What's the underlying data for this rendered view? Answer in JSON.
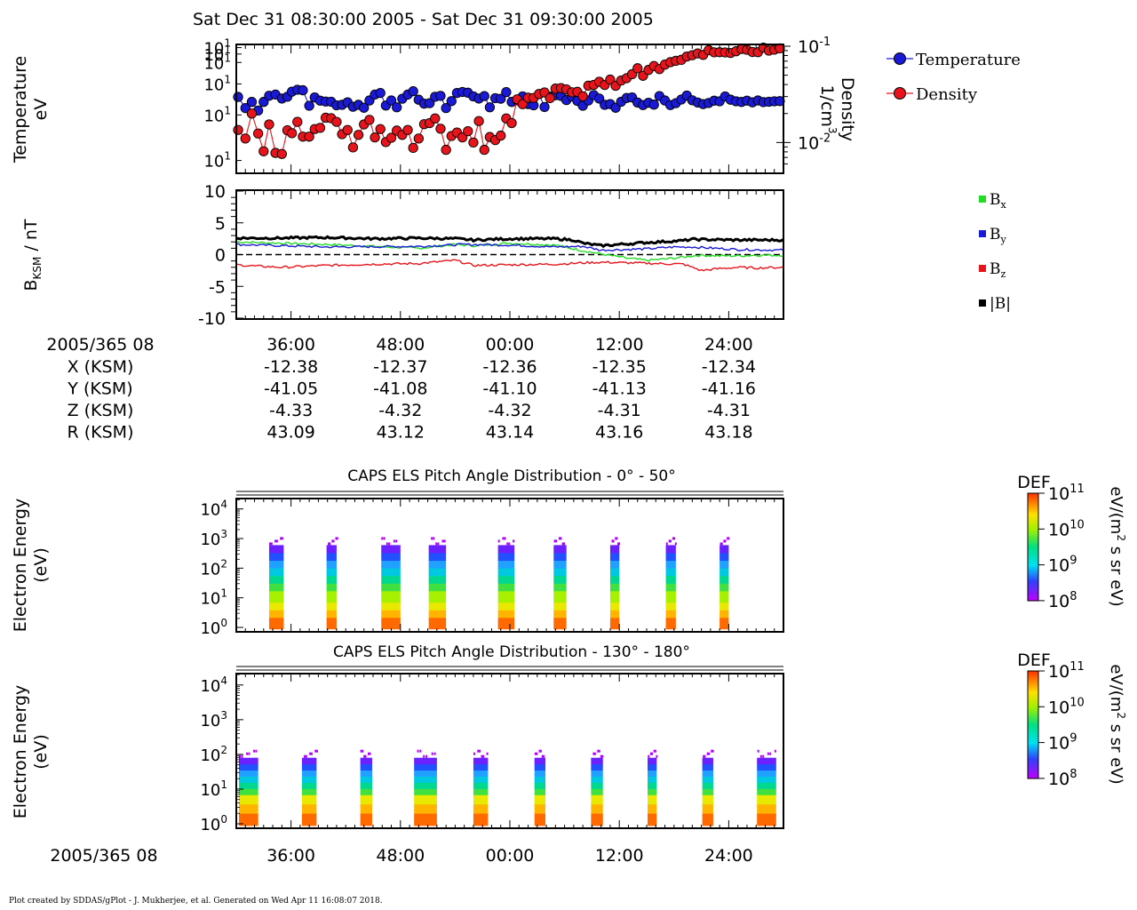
{
  "title": "Sat Dec 31 08:30:00 2005 - Sat Dec 31 09:30:00 2005",
  "footer": "Plot created by SDDAS/gPlot - J. Mukherjee, et al.  Generated on Wed Apr 11 16:08:07 2018.",
  "colors": {
    "temperature": "#1a1ad6",
    "density": "#e8141b",
    "bx": "#22dd22",
    "by": "#1a1ad6",
    "bz": "#e8141b",
    "btot": "#000000"
  },
  "panel1": {
    "ylabel": [
      "Temperature",
      "eV"
    ],
    "y2label": [
      "Density",
      "1/cm",
      "3"
    ],
    "yticks": [
      "10",
      "10",
      "10",
      "10",
      "10",
      "10"
    ],
    "yticks_exp": [
      "1",
      "1",
      "1",
      "1",
      "1",
      "1"
    ],
    "y2ticks": [
      "10",
      "10"
    ],
    "y2ticks_exp": [
      "-1",
      "-2"
    ],
    "legend": [
      "Temperature",
      "Density"
    ]
  },
  "panel2": {
    "ylabel": [
      "B",
      "KSM",
      " / nT"
    ],
    "yticks": [
      "10",
      "5",
      "0",
      "-5",
      "-10"
    ],
    "legend": [
      {
        "base": "B",
        "sub": "x"
      },
      {
        "base": "B",
        "sub": "y"
      },
      {
        "base": "B",
        "sub": "z"
      },
      {
        "base": "|B|",
        "sub": ""
      }
    ]
  },
  "ephemeris": {
    "date_label": "2005/365 08",
    "time_ticks": [
      "36:00",
      "48:00",
      "00:00",
      "12:00",
      "24:00"
    ],
    "rows": [
      {
        "label": "X (KSM)",
        "values": [
          "-12.38",
          "-12.37",
          "-12.36",
          "-12.35",
          "-12.34"
        ]
      },
      {
        "label": "Y (KSM)",
        "values": [
          "-41.05",
          "-41.08",
          "-41.10",
          "-41.13",
          "-41.16"
        ]
      },
      {
        "label": "Z (KSM)",
        "values": [
          "-4.33",
          "-4.32",
          "-4.32",
          "-4.31",
          "-4.31"
        ]
      },
      {
        "label": "R (KSM)",
        "values": [
          "43.09",
          "43.12",
          "43.14",
          "43.16",
          "43.18"
        ]
      }
    ]
  },
  "panel3": {
    "title": "CAPS ELS Pitch Angle Distribution - 0° - 50°",
    "ylabel": [
      "Electron Energy",
      "(eV)"
    ],
    "yticks_exp": [
      "4",
      "3",
      "2",
      "1",
      "0"
    ]
  },
  "panel4": {
    "title": "CAPS ELS Pitch Angle Distribution - 130° - 180°",
    "ylabel": [
      "Electron Energy",
      "(eV)"
    ],
    "yticks_exp": [
      "4",
      "3",
      "2",
      "1",
      "0"
    ]
  },
  "colorbar": {
    "label": "DEF",
    "units": "eV/(m",
    "units_exp": "2",
    "units_tail": " s sr eV)",
    "ticks_exp": [
      "11",
      "10",
      "9",
      "8"
    ]
  },
  "bottom_axis": {
    "date_label": "2005/365 08",
    "time_ticks": [
      "36:00",
      "48:00",
      "00:00",
      "12:00",
      "24:00"
    ]
  },
  "chart_data": [
    {
      "type": "line",
      "panel": "plasma moments",
      "x_unit": "minutes after 08:30 UT",
      "xlim": [
        0,
        60
      ],
      "series": [
        {
          "name": "Temperature",
          "axis": "left",
          "x": [
            0.2,
            1.0,
            1.7,
            2.4,
            3.0,
            3.6,
            4.3,
            5.0,
            5.6,
            6.1,
            6.7,
            7.3,
            8.0,
            8.6,
            9.2,
            9.8,
            10.4,
            11.0,
            11.6,
            12.2,
            12.8,
            13.4,
            14.0,
            14.6,
            15.2,
            15.8,
            16.4,
            17.0,
            17.6,
            18.2,
            18.8,
            19.4,
            20.0,
            20.6,
            21.2,
            21.8,
            22.4,
            23.0,
            23.6,
            24.2,
            24.8,
            25.4,
            26.0,
            26.6,
            27.2,
            27.8,
            28.4,
            29.0,
            29.6,
            30.2,
            30.8,
            31.4,
            32.0,
            32.6,
            33.2,
            33.8,
            34.4,
            35.0,
            35.6,
            36.2,
            36.8,
            37.4,
            38.0,
            38.6,
            39.2,
            39.8,
            40.4,
            41.0,
            41.6,
            42.2,
            42.8,
            43.4,
            44.0,
            44.6,
            45.2,
            45.8,
            46.4,
            47.0,
            47.6,
            48.2,
            48.8,
            49.4,
            50.0,
            50.6,
            51.2,
            51.8,
            52.4,
            53.0,
            53.6,
            54.2,
            54.8,
            55.4,
            56.0,
            56.6,
            57.2,
            57.8,
            58.4,
            59.0,
            59.6
          ],
          "y": [
            15.5,
            10.3,
            12.9,
            9.4,
            12.9,
            16.2,
            16.9,
            14.6,
            15.6,
            18.8,
            20.2,
            19.8,
            11.2,
            15.2,
            13.5,
            13.1,
            13.0,
            11.4,
            11.6,
            12.7,
            10.8,
            11.6,
            10.4,
            13.6,
            16.9,
            17.9,
            11.3,
            13.6,
            10.6,
            14.5,
            16.9,
            19.1,
            14.0,
            12.1,
            12.3,
            15.6,
            16.1,
            10.3,
            13.3,
            17.9,
            18.6,
            18.1,
            15.8,
            14.6,
            16.0,
            10.6,
            14.8,
            14.5,
            18.5,
            12.9,
            13.7,
            15.8,
            11.9,
            11.4,
            17.2,
            10.7,
            15.7,
            16.5,
            16.1,
            13.8,
            15.8,
            13.4,
            11.2,
            13.6,
            16.6,
            14.6,
            11.6,
            11.9,
            10.4,
            13.0,
            14.9,
            15.2,
            12.6,
            11.5,
            12.5,
            11.7,
            16.0,
            13.6,
            11.5,
            12.3,
            14.1,
            16.3,
            13.7,
            12.6,
            11.9,
            12.4,
            13.5,
            13.2,
            15.8,
            14.0,
            13.2,
            12.9,
            13.5,
            12.7,
            13.6,
            12.8,
            13.0,
            13.2,
            13.3
          ]
        },
        {
          "name": "Density",
          "axis": "right",
          "x": [
            0.2,
            1.0,
            1.7,
            2.4,
            3.0,
            3.6,
            4.3,
            5.0,
            5.6,
            6.1,
            6.7,
            7.3,
            8.0,
            8.6,
            9.2,
            9.8,
            10.4,
            11.0,
            11.6,
            12.2,
            12.8,
            13.4,
            14.0,
            14.6,
            15.2,
            15.8,
            16.4,
            17.0,
            17.6,
            18.2,
            18.8,
            19.4,
            20.0,
            20.6,
            21.2,
            21.8,
            22.4,
            23.0,
            23.6,
            24.2,
            24.8,
            25.4,
            26.0,
            26.6,
            27.2,
            27.8,
            28.4,
            29.0,
            29.6,
            30.2,
            30.8,
            31.4,
            32.0,
            32.6,
            33.2,
            33.8,
            34.4,
            35.0,
            35.6,
            36.2,
            36.8,
            37.4,
            38.0,
            38.6,
            39.2,
            39.8,
            40.4,
            41.0,
            41.6,
            42.2,
            42.8,
            43.4,
            44.0,
            44.6,
            45.2,
            45.8,
            46.4,
            47.0,
            47.6,
            48.2,
            48.8,
            49.4,
            50.0,
            50.6,
            51.2,
            51.8,
            52.4,
            53.0,
            53.6,
            54.2,
            54.8,
            55.4,
            56.0,
            56.6,
            57.2,
            57.8,
            58.4,
            59.0,
            59.6
          ],
          "y": [
            0.0135,
            0.011,
            0.02,
            0.0124,
            0.0081,
            0.0154,
            0.0078,
            0.0076,
            0.0134,
            0.0125,
            0.0164,
            0.0115,
            0.0115,
            0.0138,
            0.0142,
            0.0181,
            0.0179,
            0.0164,
            0.0122,
            0.0135,
            0.0089,
            0.012,
            0.0154,
            0.0172,
            0.0113,
            0.0138,
            0.0101,
            0.0112,
            0.0133,
            0.012,
            0.0135,
            0.0088,
            0.011,
            0.0155,
            0.0159,
            0.0178,
            0.0139,
            0.0084,
            0.0117,
            0.0127,
            0.0113,
            0.0131,
            0.01,
            0.0167,
            0.0084,
            0.0114,
            0.0106,
            0.0118,
            0.0178,
            0.0159,
            0.0281,
            0.025,
            0.0292,
            0.029,
            0.0319,
            0.0331,
            0.0289,
            0.0363,
            0.0367,
            0.0356,
            0.0332,
            0.0336,
            0.0302,
            0.0389,
            0.0397,
            0.0427,
            0.0396,
            0.045,
            0.0388,
            0.044,
            0.0465,
            0.0512,
            0.059,
            0.0493,
            0.0567,
            0.0623,
            0.0579,
            0.0644,
            0.0683,
            0.0705,
            0.0722,
            0.0781,
            0.0807,
            0.0842,
            0.0812,
            0.0909,
            0.0864,
            0.0867,
            0.0862,
            0.085,
            0.0886,
            0.0935,
            0.0918,
            0.087,
            0.0867,
            0.0966,
            0.09,
            0.092,
            0.095
          ]
        }
      ],
      "ylim_left": [
        1,
        100
      ],
      "ylim_right": [
        0.005,
        0.1
      ]
    },
    {
      "type": "line",
      "panel": "magnetic field",
      "x_unit": "minutes after 08:30 UT",
      "xlim": [
        0,
        60
      ],
      "ylim": [
        -10,
        10
      ],
      "reference_line": 0,
      "series": [
        {
          "name": "Bx",
          "knots_x": [
            0,
            10,
            20,
            24,
            26,
            30,
            35,
            37,
            40,
            43,
            45,
            47,
            49,
            50,
            51,
            53,
            55,
            57,
            60
          ],
          "knots_y": [
            2.0,
            1.6,
            1.0,
            1.6,
            1.4,
            1.8,
            1.5,
            0.9,
            0.1,
            -0.6,
            -0.9,
            -0.7,
            -0.4,
            -0.2,
            -0.1,
            -0.2,
            -0.2,
            -0.1,
            -0.1
          ]
        },
        {
          "name": "By",
          "knots_x": [
            0,
            10,
            20,
            25,
            30,
            35,
            38,
            40,
            45,
            48,
            50,
            55,
            60
          ],
          "knots_y": [
            1.6,
            1.2,
            1.3,
            1.6,
            1.5,
            1.2,
            1.3,
            0.7,
            0.9,
            1.2,
            1.2,
            0.8,
            0.7
          ]
        },
        {
          "name": "Bz",
          "knots_x": [
            0,
            2,
            5,
            10,
            15,
            20,
            24,
            26,
            30,
            35,
            38,
            40,
            43,
            46,
            49,
            51,
            53,
            55,
            57,
            60
          ],
          "knots_y": [
            -1.6,
            -1.8,
            -2.0,
            -1.7,
            -1.5,
            -1.4,
            -0.9,
            -1.7,
            -1.6,
            -1.5,
            -1.3,
            -1.2,
            -1.3,
            -1.4,
            -1.5,
            -2.5,
            -2.2,
            -2.0,
            -2.1,
            -2.0
          ]
        },
        {
          "name": "|B|",
          "knots_x": [
            0,
            5,
            10,
            15,
            20,
            24,
            26,
            30,
            35,
            37,
            38,
            40,
            45,
            49,
            50,
            55,
            60
          ],
          "knots_y": [
            2.6,
            2.6,
            2.7,
            2.5,
            2.6,
            2.5,
            2.3,
            2.5,
            2.5,
            2.3,
            1.8,
            1.4,
            1.9,
            2.2,
            2.4,
            2.3,
            2.3
          ]
        }
      ]
    },
    {
      "type": "heatmap",
      "panel": "CAPS ELS Pitch Angle Distribution - 0° - 50°",
      "x_unit": "minutes after 08:30 UT",
      "y_unit": "eV (log)",
      "zlim": [
        100000000.0,
        100000000000.0
      ],
      "data_blocks": [
        [
          3.6,
          5.2
        ],
        [
          9.9,
          11.0
        ],
        [
          15.9,
          18.0
        ],
        [
          21.1,
          23.0
        ],
        [
          28.7,
          30.5
        ],
        [
          34.8,
          36.2
        ],
        [
          41.0,
          42.0
        ],
        [
          47.1,
          48.2
        ],
        [
          53.0,
          54.0
        ]
      ],
      "top_energy_eV": 600,
      "low_energy_peak_eV": [
        1,
        5
      ]
    },
    {
      "type": "heatmap",
      "panel": "CAPS ELS Pitch Angle Distribution - 130° - 180°",
      "x_unit": "minutes after 08:30 UT",
      "y_unit": "eV (log)",
      "zlim": [
        100000000.0,
        100000000000.0
      ],
      "data_blocks": [
        [
          0.3,
          2.4
        ],
        [
          7.2,
          8.8
        ],
        [
          13.6,
          14.9
        ],
        [
          19.5,
          22.0
        ],
        [
          26.0,
          27.6
        ],
        [
          32.7,
          33.9
        ],
        [
          38.9,
          40.2
        ],
        [
          45.1,
          46.1
        ],
        [
          51.1,
          52.3
        ],
        [
          57.1,
          59.2
        ]
      ],
      "top_energy_eV": 80,
      "low_energy_peak_eV": [
        1,
        5
      ]
    }
  ]
}
